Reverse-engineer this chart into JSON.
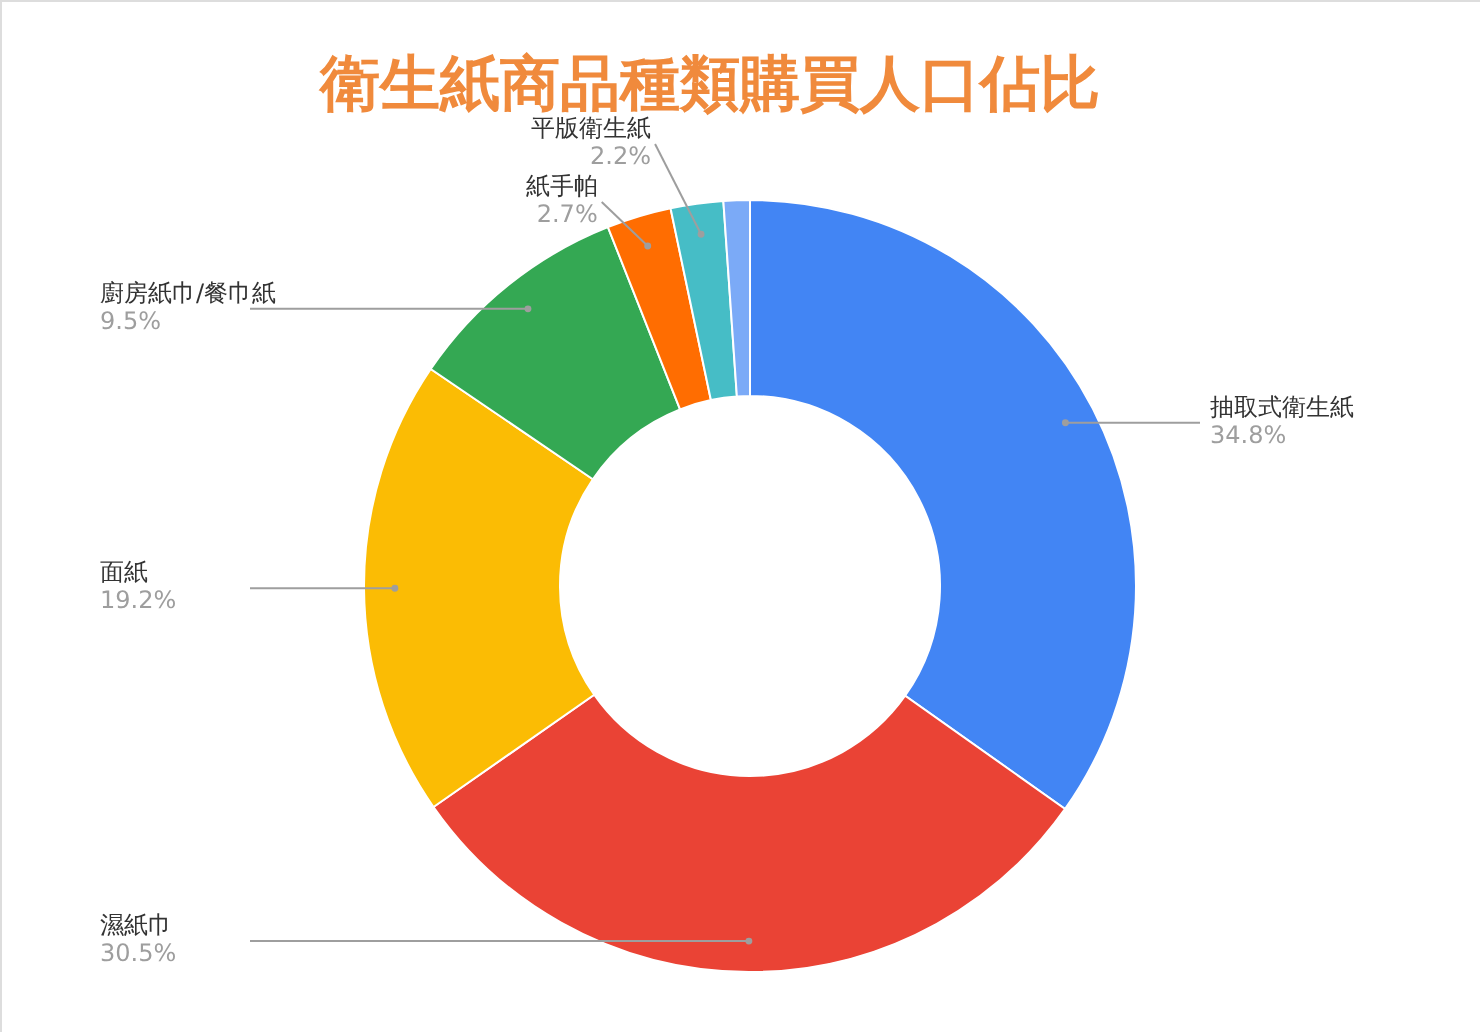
{
  "chart_data": {
    "type": "donut",
    "title": "衛生紙商品種類購買人口佔比",
    "categories": [
      "抽取式衛生紙",
      "濕紙巾",
      "面紙",
      "廚房紙巾/餐巾紙",
      "紙手帕",
      "平版衛生紙",
      null
    ],
    "values": [
      34.8,
      30.5,
      19.2,
      9.5,
      2.7,
      2.2,
      1.1
    ],
    "value_labels": [
      "34.8%",
      "30.5%",
      "19.2%",
      "9.5%",
      "2.7%",
      "2.2%",
      null
    ],
    "colors": [
      "#4285f4",
      "#ea4335",
      "#fbbc04",
      "#34a853",
      "#ff6d01",
      "#46bdc6",
      "#7baaf7"
    ]
  }
}
